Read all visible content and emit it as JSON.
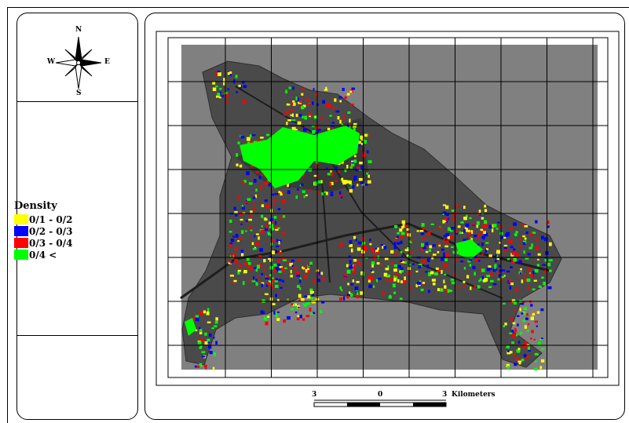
{
  "compass": {
    "north": "N",
    "south": "S",
    "east": "E",
    "west": "W"
  },
  "legend": {
    "title": "Density",
    "items": [
      {
        "label": "0/1 - 0/2",
        "color": "#ffff00"
      },
      {
        "label": "0/2 - 0/3",
        "color": "#0000ff"
      },
      {
        "label": "0/3 - 0/4",
        "color": "#ff0000"
      },
      {
        "label": "0/4 <",
        "color": "#00ff00"
      }
    ]
  },
  "map": {
    "background_color": "#808080",
    "grid_columns": 9,
    "grid_rows": 7
  },
  "scale_bar": {
    "left_value": "3",
    "mid_value": "0",
    "right_value": "3",
    "unit": "Kilometers"
  }
}
